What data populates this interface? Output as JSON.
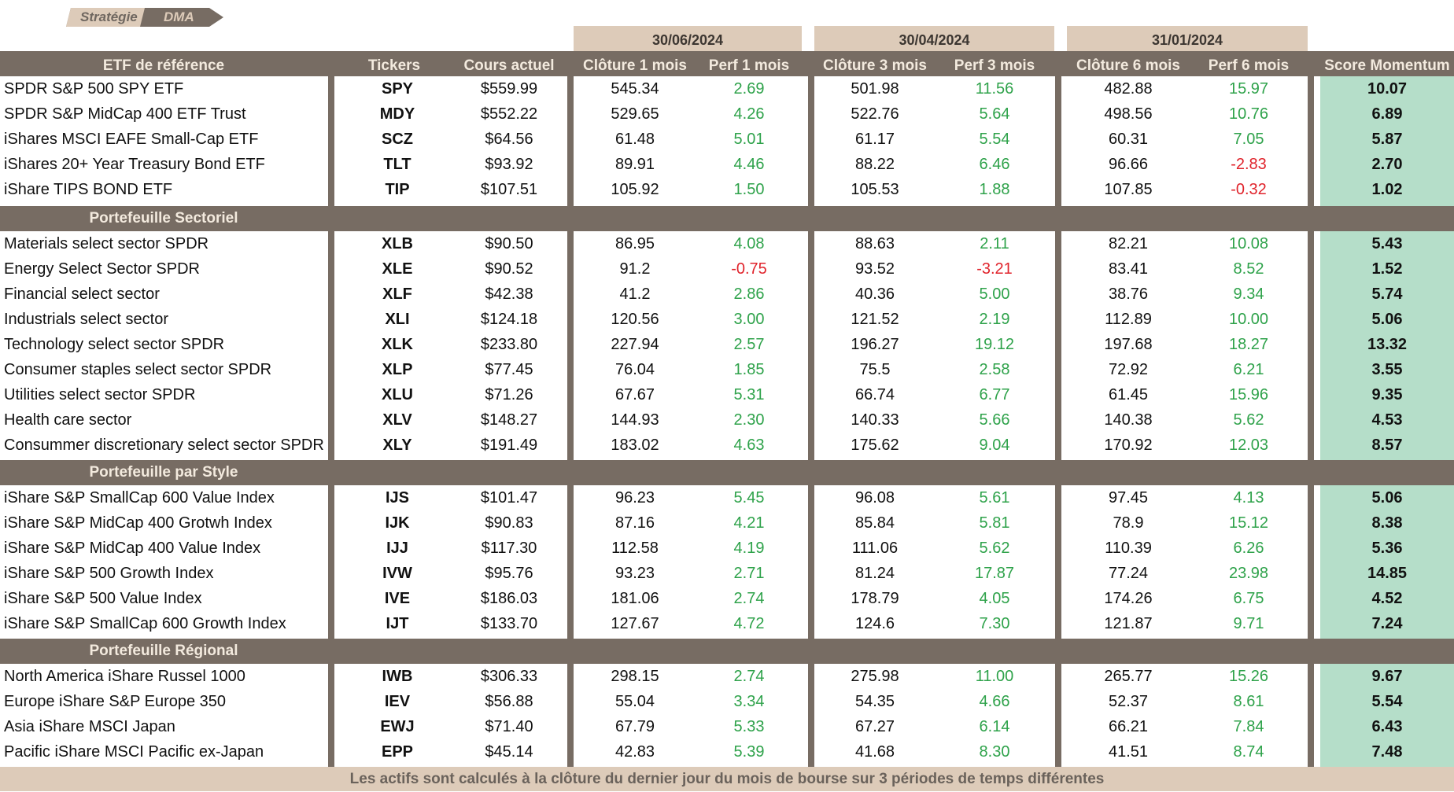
{
  "badge": {
    "part1": "Stratégie",
    "part2": "DMA"
  },
  "dates": [
    "30/06/2024",
    "30/04/2024",
    "31/01/2024"
  ],
  "columns": {
    "etf": "ETF de référence",
    "tickers": "Tickers",
    "cours": "Cours actuel",
    "close1": "Clôture 1 mois",
    "perf1": "Perf 1 mois",
    "close3": "Clôture 3 mois",
    "perf3": "Perf 3 mois",
    "close6": "Clôture 6 mois",
    "perf6": "Perf 6 mois",
    "score": "Score Momentum"
  },
  "sections": [
    {
      "title": "",
      "rows": [
        [
          "SPDR S&P 500 SPY ETF",
          "SPY",
          "$559.99",
          "545.34",
          "2.69",
          "501.98",
          "11.56",
          "482.88",
          "15.97",
          "10.07"
        ],
        [
          "SPDR S&P MidCap 400 ETF Trust",
          "MDY",
          "$552.22",
          "529.65",
          "4.26",
          "522.76",
          "5.64",
          "498.56",
          "10.76",
          "6.89"
        ],
        [
          "iShares MSCI EAFE Small-Cap ETF",
          "SCZ",
          "$64.56",
          "61.48",
          "5.01",
          "61.17",
          "5.54",
          "60.31",
          "7.05",
          "5.87"
        ],
        [
          "iShares 20+ Year Treasury Bond ETF",
          "TLT",
          "$93.92",
          "89.91",
          "4.46",
          "88.22",
          "6.46",
          "96.66",
          "-2.83",
          "2.70"
        ],
        [
          "iShare TIPS BOND ETF",
          "TIP",
          "$107.51",
          "105.92",
          "1.50",
          "105.53",
          "1.88",
          "107.85",
          "-0.32",
          "1.02"
        ]
      ]
    },
    {
      "title": "Portefeuille Sectoriel",
      "rows": [
        [
          "Materials select sector SPDR",
          "XLB",
          "$90.50",
          "86.95",
          "4.08",
          "88.63",
          "2.11",
          "82.21",
          "10.08",
          "5.43"
        ],
        [
          "Energy Select Sector SPDR",
          "XLE",
          "$90.52",
          "91.2",
          "-0.75",
          "93.52",
          "-3.21",
          "83.41",
          "8.52",
          "1.52"
        ],
        [
          "Financial select sector",
          "XLF",
          "$42.38",
          "41.2",
          "2.86",
          "40.36",
          "5.00",
          "38.76",
          "9.34",
          "5.74"
        ],
        [
          "Industrials select sector",
          "XLI",
          "$124.18",
          "120.56",
          "3.00",
          "121.52",
          "2.19",
          "112.89",
          "10.00",
          "5.06"
        ],
        [
          "Technology select sector SPDR",
          "XLK",
          "$233.80",
          "227.94",
          "2.57",
          "196.27",
          "19.12",
          "197.68",
          "18.27",
          "13.32"
        ],
        [
          "Consumer staples select sector SPDR",
          "XLP",
          "$77.45",
          "76.04",
          "1.85",
          "75.5",
          "2.58",
          "72.92",
          "6.21",
          "3.55"
        ],
        [
          "Utilities select sector SPDR",
          "XLU",
          "$71.26",
          "67.67",
          "5.31",
          "66.74",
          "6.77",
          "61.45",
          "15.96",
          "9.35"
        ],
        [
          "Health care sector",
          "XLV",
          "$148.27",
          "144.93",
          "2.30",
          "140.33",
          "5.66",
          "140.38",
          "5.62",
          "4.53"
        ],
        [
          "Consummer discretionary select sector SPDR",
          "XLY",
          "$191.49",
          "183.02",
          "4.63",
          "175.62",
          "9.04",
          "170.92",
          "12.03",
          "8.57"
        ]
      ]
    },
    {
      "title": "Portefeuille par Style",
      "rows": [
        [
          "iShare S&P SmallCap 600 Value Index",
          "IJS",
          "$101.47",
          "96.23",
          "5.45",
          "96.08",
          "5.61",
          "97.45",
          "4.13",
          "5.06"
        ],
        [
          "iShare S&P MidCap 400 Grotwh Index",
          "IJK",
          "$90.83",
          "87.16",
          "4.21",
          "85.84",
          "5.81",
          "78.9",
          "15.12",
          "8.38"
        ],
        [
          "iShare S&P MidCap 400 Value Index",
          "IJJ",
          "$117.30",
          "112.58",
          "4.19",
          "111.06",
          "5.62",
          "110.39",
          "6.26",
          "5.36"
        ],
        [
          "iShare S&P 500 Growth Index",
          "IVW",
          "$95.76",
          "93.23",
          "2.71",
          "81.24",
          "17.87",
          "77.24",
          "23.98",
          "14.85"
        ],
        [
          "iShare S&P 500 Value Index",
          "IVE",
          "$186.03",
          "181.06",
          "2.74",
          "178.79",
          "4.05",
          "174.26",
          "6.75",
          "4.52"
        ],
        [
          "iShare S&P SmallCap 600 Growth Index",
          "IJT",
          "$133.70",
          "127.67",
          "4.72",
          "124.6",
          "7.30",
          "121.87",
          "9.71",
          "7.24"
        ]
      ]
    },
    {
      "title": "Portefeuille Régional",
      "rows": [
        [
          "North America iShare Russel 1000",
          "IWB",
          "$306.33",
          "298.15",
          "2.74",
          "275.98",
          "11.00",
          "265.77",
          "15.26",
          "9.67"
        ],
        [
          "Europe iShare S&P Europe 350",
          "IEV",
          "$56.88",
          "55.04",
          "3.34",
          "54.35",
          "4.66",
          "52.37",
          "8.61",
          "5.54"
        ],
        [
          "Asia iShare MSCI Japan",
          "EWJ",
          "$71.40",
          "67.79",
          "5.33",
          "67.27",
          "6.14",
          "66.21",
          "7.84",
          "6.43"
        ],
        [
          "Pacific iShare MSCI Pacific ex-Japan",
          "EPP",
          "$45.14",
          "42.83",
          "5.39",
          "41.68",
          "8.30",
          "41.51",
          "8.74",
          "7.48"
        ]
      ]
    }
  ],
  "footer": "Les actifs sont calculés à la clôture du dernier jour du mois de bourse sur 3 périodes de temps différentes",
  "colors": {
    "band": "#776c63",
    "beige": "#ddcbb9",
    "score_bg": "#b5dec9",
    "positive": "#2ea24a",
    "negative": "#e0232b"
  }
}
